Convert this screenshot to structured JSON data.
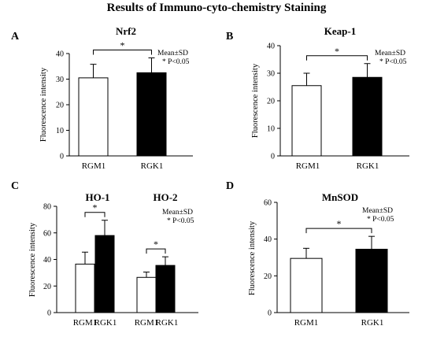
{
  "title": "Results of Immuno-cyto-chemistry Staining",
  "chart_data": [
    {
      "panel": "A",
      "type": "bar",
      "title": "Nrf2",
      "ylabel": "Fluorescence intensity",
      "ylim": [
        0,
        40
      ],
      "yticks": [
        0,
        10,
        20,
        30,
        40
      ],
      "categories": [
        "RGM1",
        "RGK1"
      ],
      "values": [
        30.5,
        32.5
      ],
      "errors": [
        5.3,
        5.8
      ],
      "fills": [
        "#ffffff",
        "#000000"
      ],
      "significance": "*",
      "legend": [
        "Mean±SD",
        "* P<0.05"
      ]
    },
    {
      "panel": "B",
      "type": "bar",
      "title": "Keap-1",
      "ylabel": "Fluorescence intensity",
      "ylim": [
        0,
        40
      ],
      "yticks": [
        0,
        10,
        20,
        30,
        40
      ],
      "categories": [
        "RGM1",
        "RGK1"
      ],
      "values": [
        25.5,
        28.5
      ],
      "errors": [
        4.5,
        5.0
      ],
      "fills": [
        "#ffffff",
        "#000000"
      ],
      "significance": "*",
      "legend": [
        "Mean±SD",
        "* P<0.05"
      ]
    },
    {
      "panel": "C",
      "type": "bar",
      "ylabel": "Fluorescence intensity",
      "ylim": [
        0,
        80
      ],
      "yticks": [
        0,
        20,
        40,
        60,
        80
      ],
      "groups": [
        {
          "title": "HO-1",
          "categories": [
            "RGM1",
            "RGK1"
          ],
          "values": [
            36.5,
            58
          ],
          "errors": [
            9,
            11.5
          ],
          "fills": [
            "#ffffff",
            "#000000"
          ],
          "significance": "*"
        },
        {
          "title": "HO-2",
          "categories": [
            "RGM1",
            "RGK1"
          ],
          "values": [
            26.5,
            35.5
          ],
          "errors": [
            4,
            6.5
          ],
          "fills": [
            "#ffffff",
            "#000000"
          ],
          "significance": "*"
        }
      ],
      "legend": [
        "Mean±SD",
        "* P<0.05"
      ]
    },
    {
      "panel": "D",
      "type": "bar",
      "title": "MnSOD",
      "ylabel": "Fluorescence intensity",
      "ylim": [
        0,
        60
      ],
      "yticks": [
        0,
        20,
        40,
        60
      ],
      "categories": [
        "RGM1",
        "RGK1"
      ],
      "values": [
        29.5,
        34.5
      ],
      "errors": [
        5.5,
        7
      ],
      "fills": [
        "#ffffff",
        "#000000"
      ],
      "significance": "*",
      "legend": [
        "Mean±SD",
        "* P<0.05"
      ]
    }
  ]
}
